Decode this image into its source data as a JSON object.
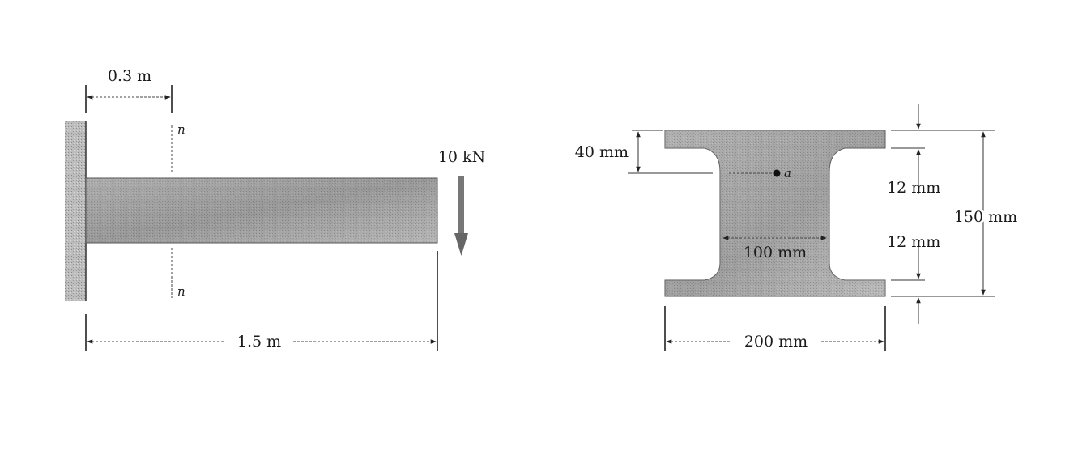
{
  "beam_figure": {
    "section_offset_label": "0.3 m",
    "section_mark_top": "n",
    "section_mark_bottom": "n",
    "load_label": "10 kN",
    "span_label": "1.5 m"
  },
  "cross_section": {
    "flange_depth_label": "40 mm",
    "point_label": "a",
    "web_thickness_top_label": "12 mm",
    "web_thickness_bottom_label": "12 mm",
    "web_width_label": "100 mm",
    "total_height_label": "150 mm",
    "total_width_label": "200 mm"
  }
}
